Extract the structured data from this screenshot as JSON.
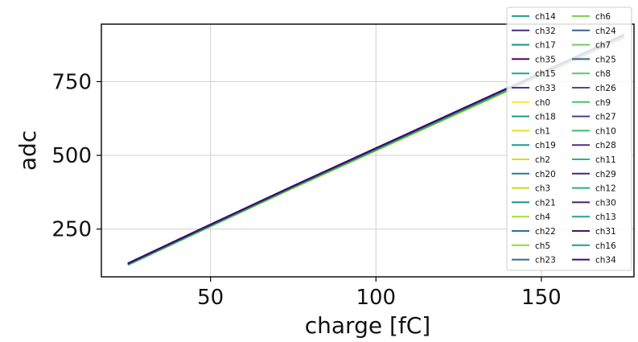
{
  "chart_data": {
    "type": "line",
    "xlabel": "charge [fC]",
    "ylabel": "adc",
    "xlim": [
      17,
      178
    ],
    "ylim": [
      88,
      945
    ],
    "xticks": [
      50,
      100,
      150
    ],
    "yticks": [
      250,
      500,
      750
    ],
    "grid": true,
    "legend_placement": "top-right",
    "legend_columns": 2,
    "x": [
      25,
      50,
      75,
      100,
      125,
      150,
      175
    ],
    "series": [
      {
        "name": "ch14",
        "color": "#26a487",
        "values": [
          130,
          262,
          393,
          520,
          648,
          776,
          905
        ]
      },
      {
        "name": "ch32",
        "color": "#472d7b",
        "values": [
          132,
          264,
          395,
          523,
          651,
          779,
          908
        ]
      },
      {
        "name": "ch17",
        "color": "#21918c",
        "values": [
          131,
          263,
          394,
          521,
          649,
          777,
          906
        ]
      },
      {
        "name": "ch35",
        "color": "#440154",
        "values": [
          133,
          265,
          396,
          524,
          652,
          780,
          909
        ]
      },
      {
        "name": "ch15",
        "color": "#23a983",
        "values": [
          129,
          261,
          392,
          519,
          647,
          775,
          904
        ]
      },
      {
        "name": "ch33",
        "color": "#443983",
        "values": [
          132,
          264,
          395,
          523,
          651,
          779,
          908
        ]
      },
      {
        "name": "ch0",
        "color": "#fde725",
        "values": [
          128,
          259,
          389,
          516,
          643,
          770,
          898
        ]
      },
      {
        "name": "ch18",
        "color": "#1f9a8a",
        "values": [
          130,
          262,
          393,
          520,
          648,
          776,
          905
        ]
      },
      {
        "name": "ch1",
        "color": "#e5e419",
        "values": [
          128,
          259,
          389,
          516,
          643,
          770,
          898
        ]
      },
      {
        "name": "ch19",
        "color": "#1e9b8a",
        "values": [
          130,
          262,
          393,
          520,
          648,
          776,
          905
        ]
      },
      {
        "name": "ch2",
        "color": "#d2e21b",
        "values": [
          128,
          259,
          390,
          517,
          644,
          771,
          899
        ]
      },
      {
        "name": "ch20",
        "color": "#2a788e",
        "values": [
          131,
          263,
          394,
          522,
          650,
          778,
          907
        ]
      },
      {
        "name": "ch3",
        "color": "#bddf26",
        "values": [
          128,
          259,
          390,
          517,
          644,
          771,
          899
        ]
      },
      {
        "name": "ch21",
        "color": "#228c8d",
        "values": [
          131,
          263,
          394,
          521,
          649,
          777,
          906
        ]
      },
      {
        "name": "ch4",
        "color": "#a8db34",
        "values": [
          128,
          260,
          390,
          517,
          644,
          771,
          899
        ]
      },
      {
        "name": "ch22",
        "color": "#2c728e",
        "values": [
          131,
          263,
          394,
          522,
          650,
          778,
          907
        ]
      },
      {
        "name": "ch5",
        "color": "#93d741",
        "values": [
          129,
          260,
          391,
          518,
          645,
          772,
          900
        ]
      },
      {
        "name": "ch23",
        "color": "#31688e",
        "values": [
          131,
          263,
          394,
          522,
          650,
          778,
          907
        ]
      },
      {
        "name": "ch6",
        "color": "#7ad151",
        "values": [
          129,
          260,
          391,
          518,
          645,
          773,
          901
        ]
      },
      {
        "name": "ch24",
        "color": "#33638d",
        "values": [
          132,
          264,
          395,
          522,
          650,
          778,
          907
        ]
      },
      {
        "name": "ch7",
        "color": "#6ccd5a",
        "values": [
          129,
          261,
          391,
          518,
          646,
          773,
          901
        ]
      },
      {
        "name": "ch25",
        "color": "#375b8d",
        "values": [
          132,
          264,
          395,
          523,
          651,
          779,
          908
        ]
      },
      {
        "name": "ch8",
        "color": "#5ec962",
        "values": [
          129,
          261,
          392,
          519,
          646,
          774,
          902
        ]
      },
      {
        "name": "ch26",
        "color": "#3b528b",
        "values": [
          132,
          264,
          395,
          523,
          651,
          779,
          908
        ]
      },
      {
        "name": "ch9",
        "color": "#4ac16d",
        "values": [
          129,
          261,
          392,
          519,
          646,
          774,
          902
        ]
      },
      {
        "name": "ch27",
        "color": "#414487",
        "values": [
          132,
          264,
          395,
          523,
          651,
          779,
          908
        ]
      },
      {
        "name": "ch10",
        "color": "#3bbb75",
        "values": [
          129,
          261,
          392,
          519,
          647,
          775,
          903
        ]
      },
      {
        "name": "ch28",
        "color": "#46327e",
        "values": [
          133,
          265,
          396,
          524,
          652,
          780,
          909
        ]
      },
      {
        "name": "ch11",
        "color": "#2db27d",
        "values": [
          130,
          262,
          392,
          520,
          647,
          775,
          903
        ]
      },
      {
        "name": "ch29",
        "color": "#482576",
        "values": [
          133,
          265,
          396,
          524,
          652,
          780,
          909
        ]
      },
      {
        "name": "ch12",
        "color": "#28ae80",
        "values": [
          130,
          262,
          393,
          520,
          648,
          776,
          904
        ]
      },
      {
        "name": "ch30",
        "color": "#481d6f",
        "values": [
          133,
          265,
          396,
          524,
          652,
          780,
          909
        ]
      },
      {
        "name": "ch13",
        "color": "#25a584",
        "values": [
          130,
          262,
          393,
          520,
          648,
          776,
          904
        ]
      },
      {
        "name": "ch31",
        "color": "#471365",
        "values": [
          133,
          265,
          396,
          524,
          652,
          780,
          909
        ]
      },
      {
        "name": "ch16",
        "color": "#20a386",
        "values": [
          130,
          262,
          393,
          520,
          648,
          776,
          905
        ]
      },
      {
        "name": "ch34",
        "color": "#440a68",
        "values": [
          133,
          265,
          396,
          524,
          652,
          780,
          909
        ]
      }
    ]
  }
}
